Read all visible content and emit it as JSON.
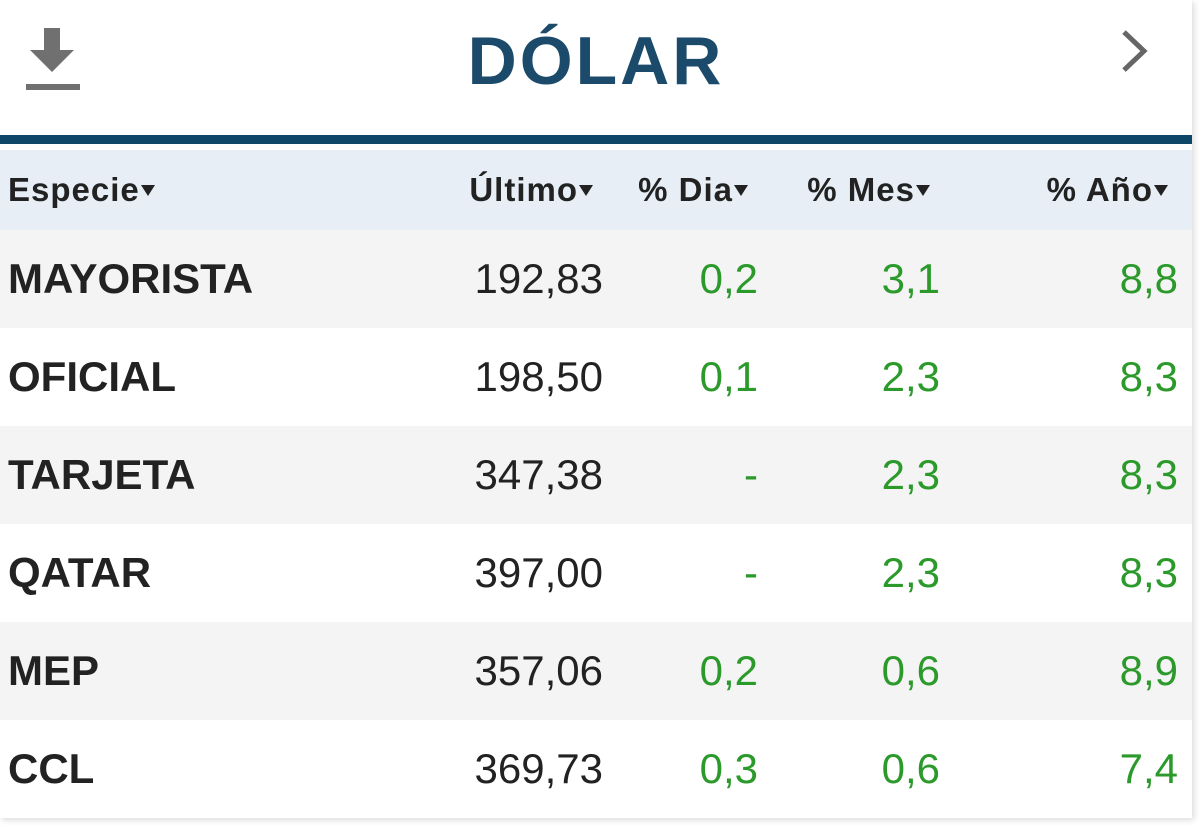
{
  "header": {
    "title": "DÓLAR"
  },
  "table": {
    "columns": [
      "Especie",
      "Último",
      "% Dia",
      "% Mes",
      "% Año"
    ],
    "rows": [
      [
        "MAYORISTA",
        "192,83",
        "0,2",
        "3,1",
        "8,8"
      ],
      [
        "OFICIAL",
        "198,50",
        "0,1",
        "2,3",
        "8,3"
      ],
      [
        "TARJETA",
        "347,38",
        "-",
        "2,3",
        "8,3"
      ],
      [
        "QATAR",
        "397,00",
        "-",
        "2,3",
        "8,3"
      ],
      [
        "MEP",
        "357,06",
        "0,2",
        "0,6",
        "8,9"
      ],
      [
        "CCL",
        "369,73",
        "0,3",
        "0,6",
        "7,4"
      ]
    ]
  }
}
